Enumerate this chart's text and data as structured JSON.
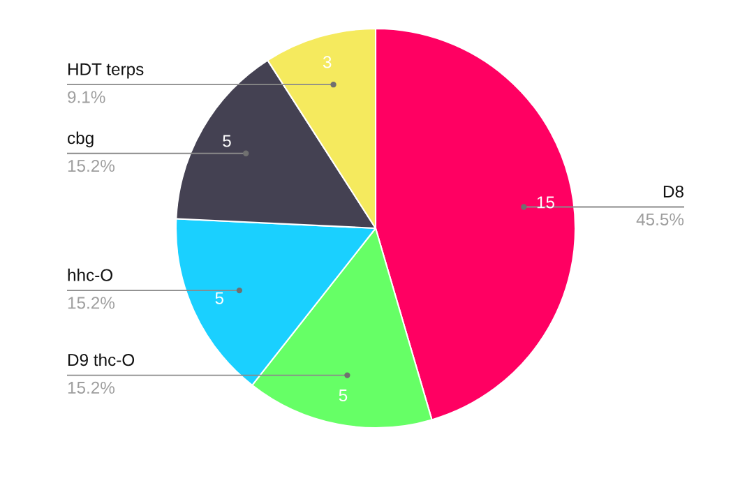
{
  "chart_data": {
    "type": "pie",
    "categories": [
      "D8",
      "D9 thc-O",
      "hhc-O",
      "cbg",
      "HDT terps"
    ],
    "values": [
      15,
      5,
      5,
      5,
      3
    ],
    "colors": [
      "#ff0062",
      "#66ff66",
      "#1ad0ff",
      "#444152",
      "#f5ea5e"
    ],
    "data_labels": true,
    "annotations": [
      "45.5%",
      "15.2%",
      "15.2%",
      "15.2%",
      "9.1%"
    ]
  }
}
